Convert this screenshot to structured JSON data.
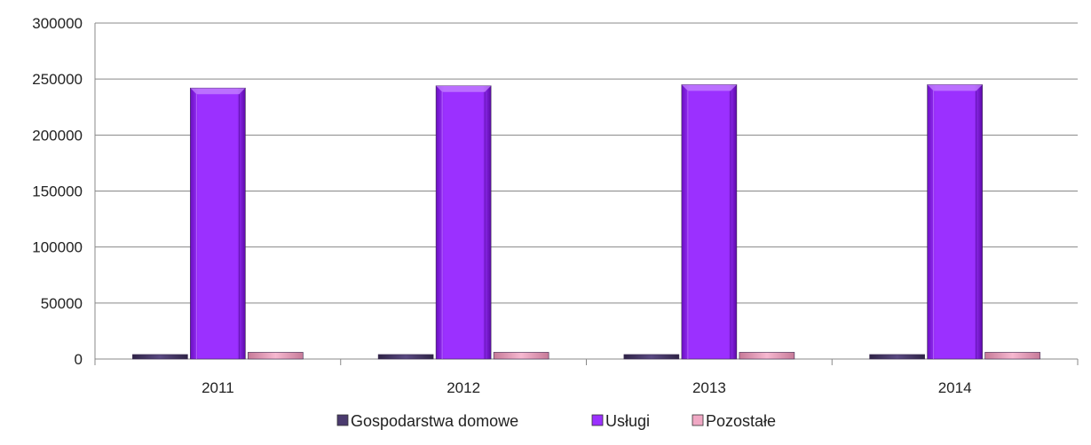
{
  "chart_data": {
    "type": "bar",
    "categories": [
      "2011",
      "2012",
      "2013",
      "2014"
    ],
    "series": [
      {
        "name": "Gospodarstwa domowe",
        "values": [
          4000,
          4000,
          4000,
          4000
        ]
      },
      {
        "name": "Usługi",
        "values": [
          242000,
          244000,
          245000,
          245000
        ]
      },
      {
        "name": "Pozostałe",
        "values": [
          6000,
          6000,
          6000,
          6000
        ]
      }
    ],
    "yticks": [
      "0",
      "50000",
      "100000",
      "150000",
      "200000",
      "250000",
      "300000"
    ],
    "ylim": [
      0,
      300000
    ],
    "grid": true,
    "legend_position": "bottom",
    "colors": {
      "Gospodarstwa domowe": "#4a3a6e",
      "Usługi": "#9b30ff",
      "Pozostałe": "#f0a8c4"
    },
    "style": "3d-bevel"
  }
}
